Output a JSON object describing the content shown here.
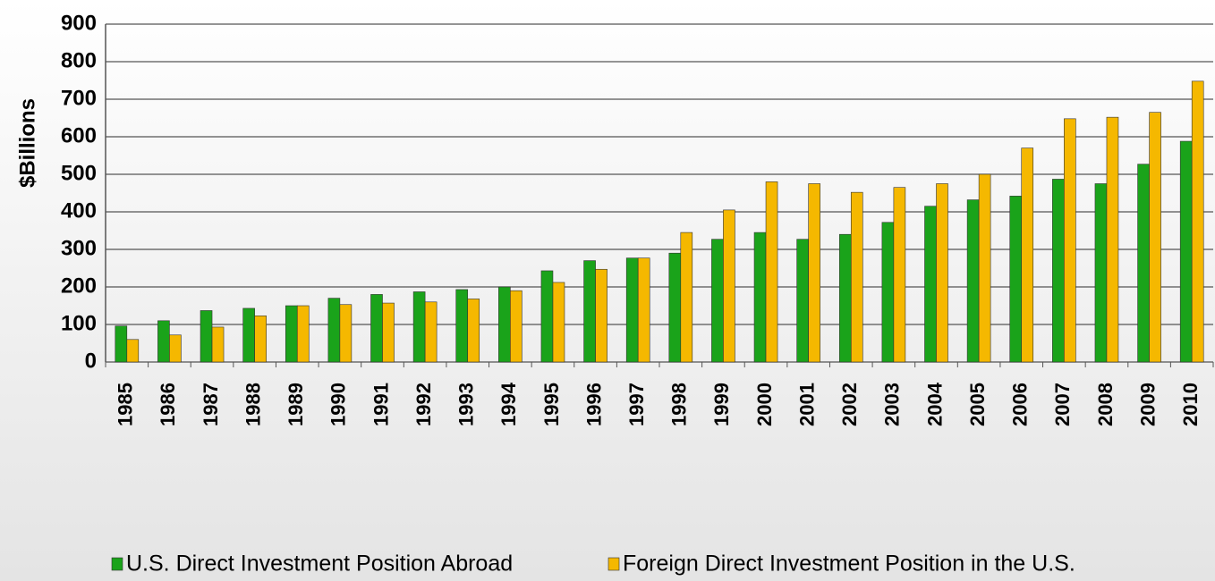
{
  "chart_data": {
    "type": "bar",
    "y_label": "$Billions",
    "categories": [
      "1985",
      "1986",
      "1987",
      "1988",
      "1989",
      "1990",
      "1991",
      "1992",
      "1993",
      "1994",
      "1995",
      "1996",
      "1997",
      "1998",
      "1999",
      "2000",
      "2001",
      "2002",
      "2003",
      "2004",
      "2005",
      "2006",
      "2007",
      "2008",
      "2009",
      "2010"
    ],
    "series": [
      {
        "name": "U.S. Direct Investment Position Abroad",
        "color": "#1aa31a",
        "values": [
          96,
          110,
          137,
          143,
          150,
          170,
          180,
          187,
          193,
          200,
          243,
          270,
          277,
          290,
          327,
          345,
          327,
          340,
          372,
          415,
          432,
          442,
          487,
          475,
          527,
          588
        ]
      },
      {
        "name": "Foreign Direct Investment Position in the U.S.",
        "color": "#f5b800",
        "values": [
          60,
          72,
          93,
          123,
          150,
          153,
          157,
          160,
          168,
          190,
          212,
          247,
          277,
          345,
          405,
          480,
          475,
          452,
          465,
          475,
          500,
          570,
          648,
          652,
          665,
          748
        ]
      }
    ],
    "ylim": [
      0,
      900
    ],
    "yticks": [
      0,
      100,
      200,
      300,
      400,
      500,
      600,
      700,
      800,
      900
    ],
    "grid": true
  }
}
